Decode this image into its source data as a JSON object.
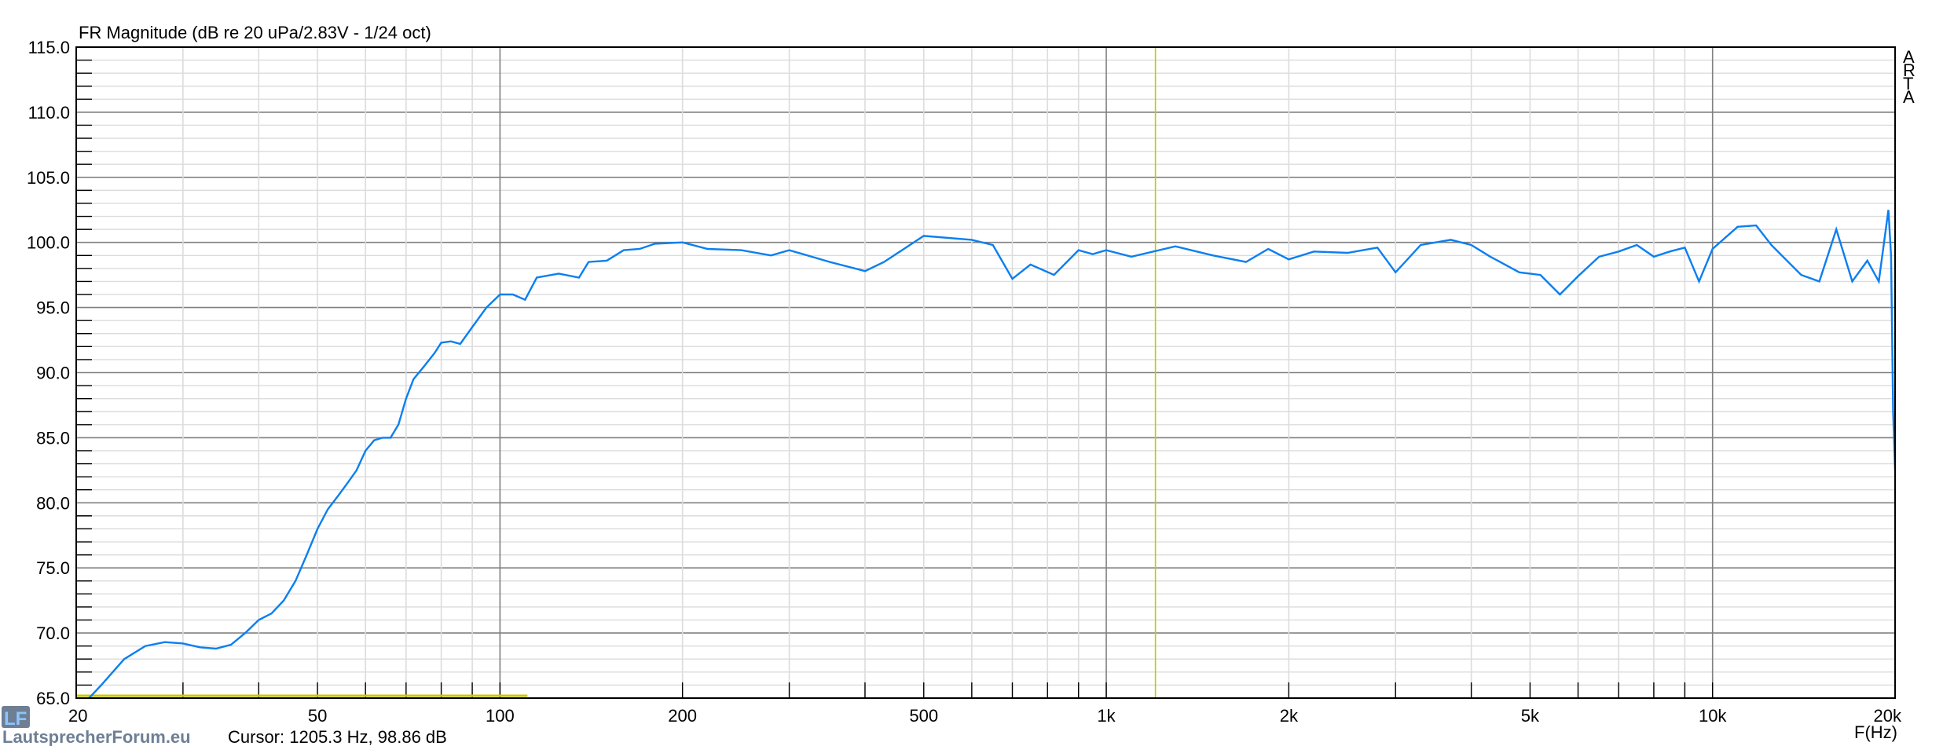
{
  "chart_data": {
    "type": "line",
    "title": "FR Magnitude (dB re 20 uPa/2.83V - 1/24 oct)",
    "xlabel": "F(Hz)",
    "ylabel": "",
    "xscale": "log",
    "xlim": [
      20,
      20000
    ],
    "ylim": [
      65,
      115
    ],
    "grid": true,
    "watermark": "ARTA",
    "logo_text": "LautsprecherForum.eu",
    "cursor_readout": "Cursor: 1205.3 Hz, 98.86 dB",
    "cursor_freq": 1205.3,
    "cursor_db": 98.86,
    "marker_line": {
      "y": 65,
      "x_from": 20,
      "x_to": 111
    },
    "x_ticks": [
      20,
      50,
      100,
      200,
      500,
      1000,
      2000,
      5000,
      10000,
      20000
    ],
    "x_tick_labels": [
      "20",
      "50",
      "100",
      "200",
      "500",
      "1k",
      "2k",
      "5k",
      "10k",
      "20k"
    ],
    "y_ticks": [
      65,
      70,
      75,
      80,
      85,
      90,
      95,
      100,
      105,
      110,
      115
    ],
    "y_tick_labels": [
      "65.0",
      "70.0",
      "75.0",
      "80.0",
      "85.0",
      "90.0",
      "95.0",
      "100.0",
      "105.0",
      "110.0",
      "115.0"
    ],
    "colors": {
      "curve": "#0a7ff0",
      "cursor": "#c8c800",
      "major_grid": "#808080",
      "minor_grid": "#dcdcdc"
    },
    "series": [
      {
        "x": [
          21,
          22,
          24,
          26,
          28,
          30,
          32,
          34,
          36,
          38,
          40,
          42,
          44,
          46,
          48,
          50,
          52,
          54,
          56,
          58,
          60,
          62,
          64,
          66,
          68,
          70,
          72,
          75,
          78,
          80,
          83,
          86,
          90,
          95,
          100,
          105,
          110,
          115,
          125,
          135,
          140,
          150,
          160,
          170,
          180,
          200,
          220,
          250,
          280,
          300,
          350,
          400,
          430,
          500,
          600,
          650,
          700,
          750,
          820,
          900,
          950,
          1000,
          1100,
          1300,
          1500,
          1700,
          1850,
          2000,
          2200,
          2500,
          2800,
          3000,
          3300,
          3700,
          4000,
          4300,
          4800,
          5200,
          5600,
          6000,
          6500,
          7000,
          7500,
          8000,
          8500,
          9000,
          9500,
          10000,
          11000,
          11800,
          12500,
          14000,
          15000,
          16000,
          17000,
          18000,
          18800,
          19500,
          19700,
          19850,
          20000
        ],
        "y": [
          65,
          66,
          68,
          69,
          69.3,
          69.2,
          68.9,
          68.8,
          69.1,
          70,
          71,
          71.5,
          72.5,
          74,
          76,
          78,
          79.5,
          80.5,
          81.5,
          82.5,
          84,
          84.8,
          85,
          85,
          86,
          88,
          89.5,
          90.5,
          91.5,
          92.3,
          92.4,
          92.2,
          93.5,
          95,
          96,
          96,
          95.6,
          97.3,
          97.6,
          97.3,
          98.5,
          98.6,
          99.4,
          99.5,
          99.9,
          100,
          99.5,
          99.4,
          99,
          99.4,
          98.5,
          97.8,
          98.5,
          100.5,
          100.2,
          99.8,
          97.2,
          98.3,
          97.5,
          99.4,
          99.1,
          99.4,
          98.9,
          99.7,
          99,
          98.5,
          99.5,
          98.7,
          99.3,
          99.2,
          99.6,
          97.7,
          99.8,
          100.2,
          99.8,
          98.9,
          97.7,
          97.5,
          96,
          97.4,
          98.9,
          99.3,
          99.8,
          98.9,
          99.3,
          99.6,
          97,
          99.5,
          101.2,
          101.3,
          99.8,
          97.5,
          97,
          101,
          97,
          98.6,
          97,
          102.5,
          99,
          87,
          82.5
        ]
      }
    ]
  }
}
